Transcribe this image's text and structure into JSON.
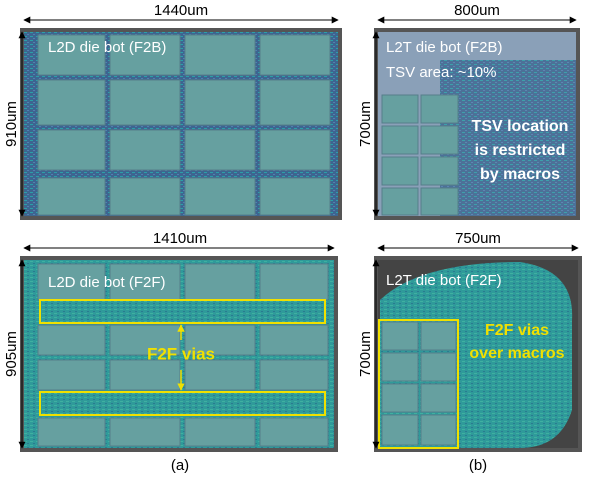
{
  "panels": [
    {
      "width_label": "1440um",
      "height_label": "910um",
      "title": "L2D die bot (F2B)"
    },
    {
      "width_label": "800um",
      "height_label": "700um",
      "title": "L2T die bot (F2B)",
      "note": "TSV area: ~10%",
      "callout": [
        "TSV location",
        "is restricted",
        "by macros"
      ]
    },
    {
      "width_label": "1410um",
      "height_label": "905um",
      "title": "L2D die bot (F2F)",
      "callout": [
        "F2F vias"
      ]
    },
    {
      "width_label": "750um",
      "height_label": "700um",
      "title": "L2T die bot (F2F)",
      "callout": [
        "F2F vias",
        "over macros"
      ]
    }
  ],
  "captions": [
    "(a)",
    "(b)"
  ]
}
